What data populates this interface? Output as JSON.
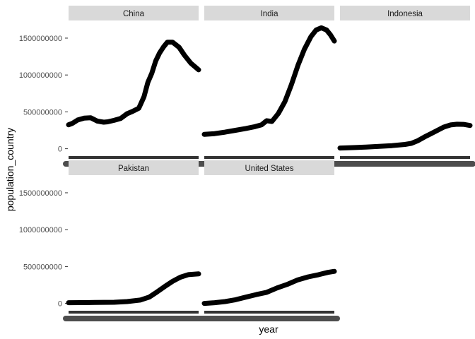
{
  "chart_data": {
    "type": "line",
    "facet_layout": "3 columns x 2 rows",
    "xlabel": "year",
    "ylabel": "population_country",
    "ylim": [
      -90000000,
      1720000000
    ],
    "y_ticks": [
      0,
      500000000,
      1000000000,
      1500000000
    ],
    "y_tick_labels": [
      "0",
      "500000000",
      "1000000000",
      "1500000000"
    ],
    "x_tick_labels": "illegible (overlapping year labels)",
    "grid": false,
    "legend": "none",
    "colors": {
      "strip": "#d9d9d9",
      "line": "#000000",
      "axis_text": "#4d4d4d"
    },
    "facets": [
      {
        "label": "China",
        "x": [
          0,
          0.03,
          0.07,
          0.12,
          0.17,
          0.22,
          0.27,
          0.3,
          0.35,
          0.4,
          0.45,
          0.49,
          0.54,
          0.58,
          0.61,
          0.64,
          0.67,
          0.7,
          0.73,
          0.76,
          0.8,
          0.85,
          0.89,
          0.94,
          1
        ],
        "values": [
          325000000,
          345000000,
          390000000,
          415000000,
          420000000,
          375000000,
          360000000,
          365000000,
          385000000,
          410000000,
          475000000,
          505000000,
          550000000,
          705000000,
          900000000,
          1025000000,
          1190000000,
          1300000000,
          1380000000,
          1445000000,
          1445000000,
          1375000000,
          1270000000,
          1160000000,
          1070000000
        ]
      },
      {
        "label": "India",
        "x": [
          0,
          0.08,
          0.16,
          0.24,
          0.32,
          0.39,
          0.44,
          0.48,
          0.52,
          0.57,
          0.62,
          0.67,
          0.72,
          0.77,
          0.82,
          0.86,
          0.9,
          0.94,
          0.97,
          1
        ],
        "values": [
          195000000,
          205000000,
          225000000,
          250000000,
          275000000,
          300000000,
          325000000,
          380000000,
          370000000,
          480000000,
          640000000,
          870000000,
          1130000000,
          1350000000,
          1520000000,
          1610000000,
          1640000000,
          1610000000,
          1545000000,
          1460000000
        ]
      },
      {
        "label": "Indonesia",
        "x": [
          0,
          0.1,
          0.2,
          0.3,
          0.4,
          0.5,
          0.55,
          0.6,
          0.65,
          0.7,
          0.75,
          0.8,
          0.85,
          0.9,
          0.95,
          1
        ],
        "values": [
          10000000,
          15000000,
          22000000,
          32000000,
          42000000,
          58000000,
          74000000,
          110000000,
          160000000,
          205000000,
          250000000,
          295000000,
          323000000,
          332000000,
          330000000,
          315000000
        ]
      },
      {
        "label": "Pakistan",
        "x": [
          0,
          0.2,
          0.35,
          0.45,
          0.55,
          0.62,
          0.68,
          0.74,
          0.8,
          0.86,
          0.92,
          1
        ],
        "values": [
          10000000,
          12000000,
          15000000,
          25000000,
          45000000,
          85000000,
          155000000,
          230000000,
          300000000,
          355000000,
          390000000,
          400000000
        ]
      },
      {
        "label": "United States",
        "x": [
          0,
          0.08,
          0.16,
          0.24,
          0.32,
          0.4,
          0.48,
          0.56,
          0.64,
          0.72,
          0.8,
          0.88,
          0.95,
          1
        ],
        "values": [
          0,
          10000000,
          25000000,
          50000000,
          85000000,
          120000000,
          150000000,
          210000000,
          260000000,
          320000000,
          360000000,
          390000000,
          420000000,
          435000000
        ]
      }
    ]
  }
}
